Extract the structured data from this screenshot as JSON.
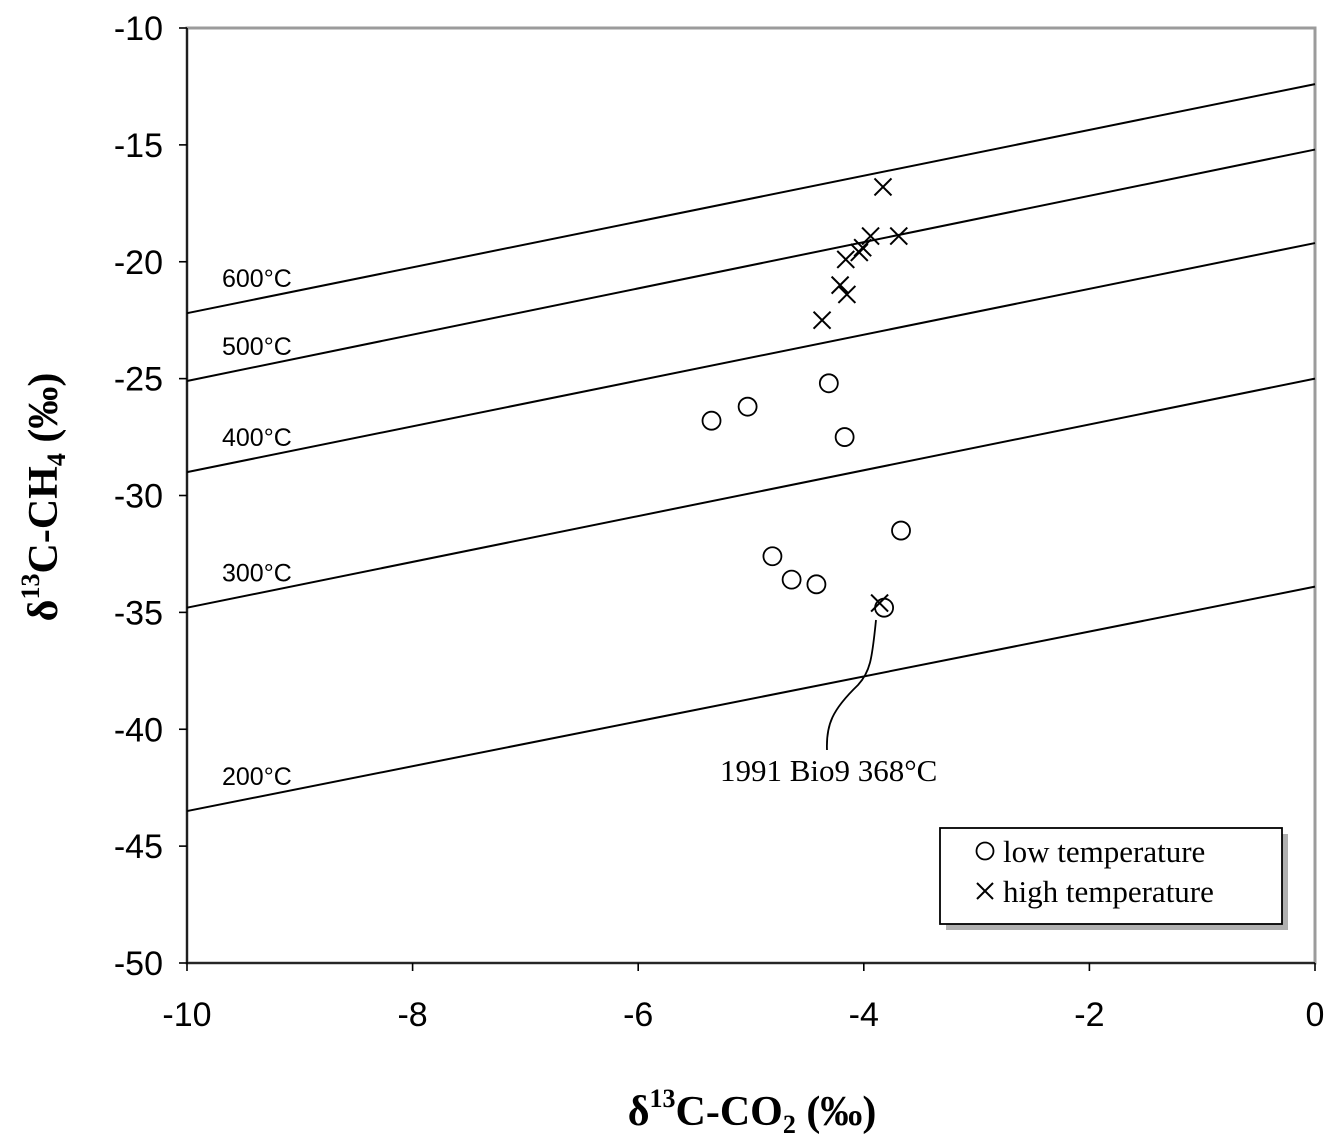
{
  "chart_data": {
    "type": "scatter",
    "xlabel": {
      "prefix": "δ",
      "sup": "13",
      "main": "C-CO",
      "sub": "2",
      "suffix": " (‰)"
    },
    "ylabel": {
      "prefix": "δ",
      "sup": "13",
      "main": "C-CH",
      "sub": "4",
      "suffix": " (‰)"
    },
    "xlim": [
      -10,
      0
    ],
    "ylim": [
      -50,
      -10
    ],
    "x_ticks": [
      -10,
      -8,
      -6,
      -4,
      -2,
      0
    ],
    "y_ticks": [
      -10,
      -15,
      -20,
      -25,
      -30,
      -35,
      -40,
      -45,
      -50
    ],
    "grid": false,
    "isotherms": [
      {
        "label": "600°C",
        "y_at_xmin": -22.2,
        "y_at_xmax": -12.4
      },
      {
        "label": "500°C",
        "y_at_xmin": -25.1,
        "y_at_xmax": -15.2
      },
      {
        "label": "400°C",
        "y_at_xmin": -29.0,
        "y_at_xmax": -19.2
      },
      {
        "label": "300°C",
        "y_at_xmin": -34.8,
        "y_at_xmax": -25.0
      },
      {
        "label": "200°C",
        "y_at_xmin": -43.5,
        "y_at_xmax": -33.9
      }
    ],
    "series": [
      {
        "name": "low temperature",
        "marker": "circle",
        "points": [
          [
            -5.35,
            -26.8
          ],
          [
            -5.03,
            -26.2
          ],
          [
            -4.31,
            -25.2
          ],
          [
            -4.17,
            -27.5
          ],
          [
            -3.67,
            -31.5
          ],
          [
            -4.81,
            -32.6
          ],
          [
            -4.64,
            -33.6
          ],
          [
            -4.42,
            -33.8
          ],
          [
            -3.82,
            -34.8
          ]
        ]
      },
      {
        "name": "high temperature",
        "marker": "x",
        "points": [
          [
            -3.83,
            -16.8
          ],
          [
            -3.94,
            -18.9
          ],
          [
            -3.69,
            -18.9
          ],
          [
            -4.01,
            -19.4
          ],
          [
            -4.04,
            -19.6
          ],
          [
            -4.16,
            -19.9
          ],
          [
            -4.21,
            -21.0
          ],
          [
            -4.15,
            -21.4
          ],
          [
            -4.37,
            -22.5
          ],
          [
            -3.86,
            -34.6
          ]
        ]
      }
    ],
    "annotation": {
      "text": "1991 Bio9 368°C",
      "points_to": [
        -3.86,
        -34.7
      ]
    },
    "legend": {
      "position": "bottom-right"
    },
    "colors": {
      "frame": "#9b9b9b",
      "ink": "#000000",
      "background": "#ffffff"
    }
  }
}
